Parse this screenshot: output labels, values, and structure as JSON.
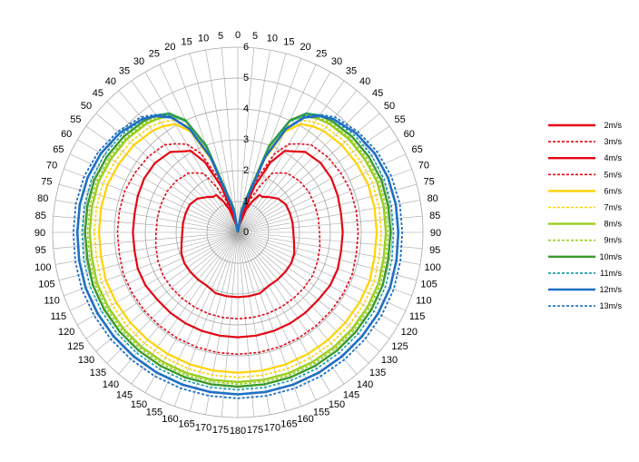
{
  "chart_data": {
    "type": "polar-line",
    "title": "",
    "angle_unit": "degrees",
    "angle_ticks": [
      0,
      5,
      10,
      15,
      20,
      25,
      30,
      35,
      40,
      45,
      50,
      55,
      60,
      65,
      70,
      75,
      80,
      85,
      90,
      95,
      100,
      105,
      110,
      115,
      120,
      125,
      130,
      135,
      140,
      145,
      150,
      155,
      160,
      165,
      170,
      175,
      180
    ],
    "radial_range": [
      0,
      6
    ],
    "radial_ticks": [
      "0",
      "1",
      "2",
      "3",
      "4",
      "5",
      "6"
    ],
    "grid": true,
    "legend_position": "right",
    "angles": [
      0,
      10,
      20,
      25,
      30,
      35,
      40,
      50,
      60,
      70,
      80,
      90,
      100,
      110,
      120,
      130,
      140,
      150,
      160,
      170,
      180
    ],
    "series": [
      {
        "name": "2m/s",
        "color": "#e30613",
        "dash": false,
        "width": 2.2,
        "values": [
          0,
          0.2,
          0.8,
          1.1,
          1.4,
          1.4,
          1.5,
          1.7,
          1.8,
          1.8,
          1.8,
          1.8,
          1.85,
          1.95,
          2.0,
          2.0,
          2.0,
          2.0,
          2.1,
          2.1,
          2.1
        ]
      },
      {
        "name": "3m/s",
        "color": "#e30613",
        "dash": true,
        "width": 1.6,
        "values": [
          0,
          0.3,
          1.1,
          1.6,
          2.2,
          2.35,
          2.5,
          2.6,
          2.65,
          2.65,
          2.65,
          2.65,
          2.7,
          2.75,
          2.8,
          2.8,
          2.8,
          2.8,
          2.8,
          2.8,
          2.8
        ]
      },
      {
        "name": "4m/s",
        "color": "#e30613",
        "dash": false,
        "width": 2.2,
        "values": [
          0,
          0.45,
          1.6,
          2.5,
          3.05,
          3.2,
          3.4,
          3.5,
          3.5,
          3.45,
          3.4,
          3.4,
          3.4,
          3.45,
          3.45,
          3.4,
          3.4,
          3.4,
          3.4,
          3.4,
          3.4
        ]
      },
      {
        "name": "5m/s",
        "color": "#e30613",
        "dash": true,
        "width": 1.6,
        "values": [
          0,
          0.55,
          1.9,
          2.8,
          3.3,
          3.5,
          3.7,
          3.8,
          3.85,
          3.9,
          3.9,
          3.9,
          3.9,
          3.95,
          3.95,
          3.95,
          3.95,
          3.95,
          3.95,
          3.95,
          3.95
        ]
      },
      {
        "name": "6m/s",
        "color": "#ffd200",
        "dash": false,
        "width": 2.2,
        "values": [
          0,
          0.7,
          2.5,
          3.6,
          4.05,
          4.2,
          4.3,
          4.4,
          4.45,
          4.5,
          4.5,
          4.5,
          4.5,
          4.55,
          4.55,
          4.55,
          4.55,
          4.55,
          4.55,
          4.55,
          4.55
        ]
      },
      {
        "name": "7m/s",
        "color": "#ffd200",
        "dash": true,
        "width": 1.6,
        "values": [
          0,
          0.75,
          2.7,
          3.8,
          4.2,
          4.35,
          4.45,
          4.55,
          4.6,
          4.65,
          4.65,
          4.65,
          4.65,
          4.7,
          4.7,
          4.7,
          4.7,
          4.7,
          4.7,
          4.7,
          4.7
        ]
      },
      {
        "name": "8m/s",
        "color": "#9acd1e",
        "dash": false,
        "width": 2.4,
        "values": [
          0,
          0.8,
          2.9,
          4.0,
          4.35,
          4.5,
          4.6,
          4.7,
          4.75,
          4.8,
          4.8,
          4.8,
          4.8,
          4.85,
          4.85,
          4.85,
          4.85,
          4.85,
          4.85,
          4.85,
          4.85
        ]
      },
      {
        "name": "9m/s",
        "color": "#9acd1e",
        "dash": true,
        "width": 1.6,
        "values": [
          0,
          0.8,
          2.95,
          4.05,
          4.4,
          4.55,
          4.65,
          4.75,
          4.82,
          4.87,
          4.87,
          4.87,
          4.87,
          4.92,
          4.92,
          4.92,
          4.92,
          4.92,
          4.92,
          4.92,
          4.92
        ]
      },
      {
        "name": "10m/s",
        "color": "#3a9a2a",
        "dash": false,
        "width": 2.4,
        "values": [
          0,
          0.8,
          3.0,
          4.0,
          4.45,
          4.62,
          4.72,
          4.83,
          4.9,
          4.95,
          4.95,
          4.95,
          4.95,
          5.0,
          5.0,
          5.0,
          5.0,
          5.0,
          5.0,
          5.0,
          5.0
        ]
      },
      {
        "name": "11m/s",
        "color": "#0e9aa7",
        "dash": true,
        "width": 1.6,
        "values": [
          0,
          0.8,
          2.95,
          3.95,
          4.45,
          4.65,
          4.78,
          4.92,
          5.0,
          5.05,
          5.05,
          5.05,
          5.07,
          5.1,
          5.1,
          5.1,
          5.1,
          5.1,
          5.1,
          5.1,
          5.1
        ]
      },
      {
        "name": "12m/s",
        "color": "#1f6fc4",
        "dash": false,
        "width": 2.6,
        "values": [
          0,
          0.7,
          2.6,
          3.7,
          4.3,
          4.6,
          4.8,
          5.0,
          5.12,
          5.18,
          5.2,
          5.2,
          5.22,
          5.25,
          5.25,
          5.25,
          5.25,
          5.25,
          5.25,
          5.25,
          5.25
        ]
      },
      {
        "name": "13m/s",
        "color": "#1f6fc4",
        "dash": true,
        "width": 1.8,
        "values": [
          0,
          0.7,
          2.6,
          3.7,
          4.35,
          4.65,
          4.88,
          5.08,
          5.22,
          5.3,
          5.33,
          5.33,
          5.35,
          5.38,
          5.38,
          5.38,
          5.38,
          5.38,
          5.38,
          5.38,
          5.38
        ]
      }
    ]
  }
}
